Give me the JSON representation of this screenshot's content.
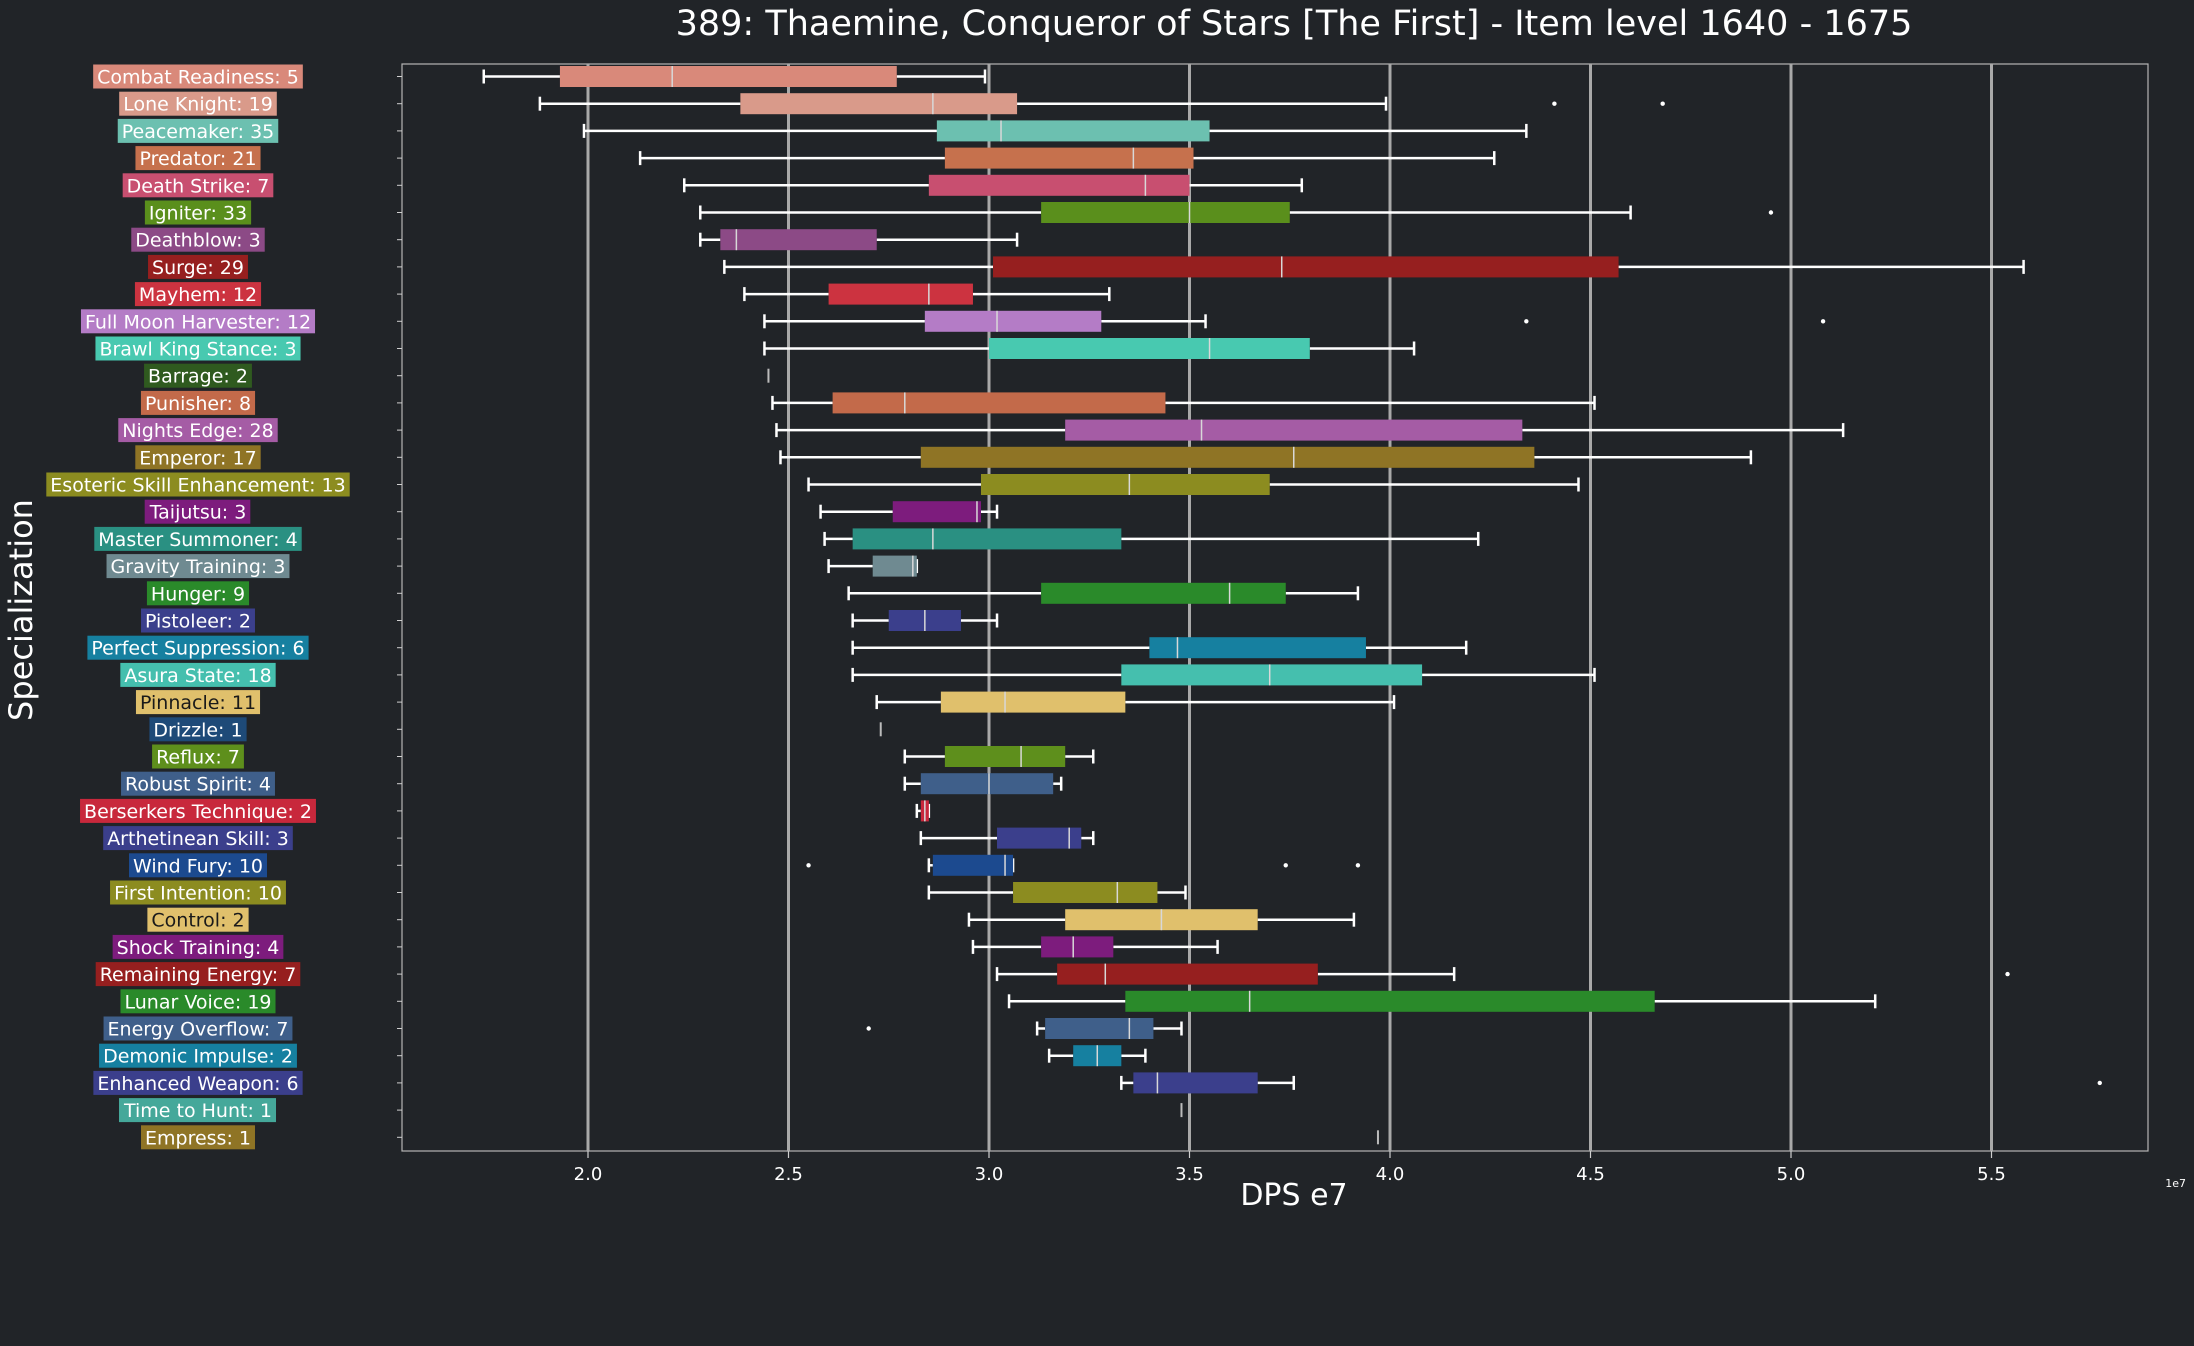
{
  "chart_data": {
    "type": "boxplot",
    "title": "389: Thaemine, Conqueror of Stars [The First] - Item level 1640 - 1675",
    "xlabel": "DPS e7",
    "ylabel": "Specialization",
    "x_offset_label": "1e7",
    "xlim": [
      1.53,
      5.97
    ],
    "xticks": [
      2.0,
      2.5,
      3.0,
      3.5,
      4.0,
      4.5,
      5.0,
      5.5
    ],
    "xtick_labels": [
      "2.0",
      "2.5",
      "3.0",
      "3.5",
      "4.0",
      "4.5",
      "5.0",
      "5.5"
    ],
    "grid": "vertical at ticks",
    "background": "#212428",
    "series": [
      {
        "label": "Combat Readiness: 5",
        "color": "#d9897a",
        "whisker_low": 1.74,
        "q1": 1.93,
        "median": 2.21,
        "q3": 2.77,
        "whisker_high": 2.99,
        "outliers": []
      },
      {
        "label": "Lone Knight: 19",
        "color": "#d99a8a",
        "whisker_low": 1.88,
        "q1": 2.38,
        "median": 2.86,
        "q3": 3.07,
        "whisker_high": 3.99,
        "outliers": [
          4.41,
          4.68
        ]
      },
      {
        "label": "Peacemaker: 35",
        "color": "#6cc0b0",
        "whisker_low": 1.99,
        "q1": 2.87,
        "median": 3.03,
        "q3": 3.55,
        "whisker_high": 4.34,
        "outliers": []
      },
      {
        "label": "Predator: 21",
        "color": "#c6714d",
        "whisker_low": 2.13,
        "q1": 2.89,
        "median": 3.36,
        "q3": 3.51,
        "whisker_high": 4.26,
        "outliers": []
      },
      {
        "label": "Death Strike: 7",
        "color": "#c84f70",
        "whisker_low": 2.24,
        "q1": 2.85,
        "median": 3.39,
        "q3": 3.5,
        "whisker_high": 3.78,
        "outliers": []
      },
      {
        "label": "Igniter: 33",
        "color": "#5a8f1c",
        "whisker_low": 2.28,
        "q1": 3.13,
        "median": 3.5,
        "q3": 3.75,
        "whisker_high": 4.6,
        "outliers": [
          4.95
        ]
      },
      {
        "label": "Deathblow: 3",
        "color": "#8c4a86",
        "whisker_low": 2.28,
        "q1": 2.33,
        "median": 2.37,
        "q3": 2.72,
        "whisker_high": 3.07,
        "outliers": []
      },
      {
        "label": "Surge: 29",
        "color": "#961f1f",
        "whisker_low": 2.34,
        "q1": 3.01,
        "median": 3.73,
        "q3": 4.57,
        "whisker_high": 5.58,
        "outliers": []
      },
      {
        "label": "Mayhem: 12",
        "color": "#cc3340",
        "whisker_low": 2.39,
        "q1": 2.6,
        "median": 2.85,
        "q3": 2.96,
        "whisker_high": 3.3,
        "outliers": []
      },
      {
        "label": "Full Moon Harvester: 12",
        "color": "#b47cc6",
        "whisker_low": 2.44,
        "q1": 2.84,
        "median": 3.02,
        "q3": 3.28,
        "whisker_high": 3.54,
        "outliers": [
          4.34,
          5.08
        ]
      },
      {
        "label": "Brawl King Stance: 3",
        "color": "#48c9b0",
        "whisker_low": 2.44,
        "q1": 3.0,
        "median": 3.55,
        "q3": 3.8,
        "whisker_high": 4.06,
        "outliers": []
      },
      {
        "label": "Barrage: 2",
        "color": "#2f5a1f",
        "whisker_low": 2.45,
        "q1": 2.45,
        "median": 2.45,
        "q3": 2.45,
        "whisker_high": 2.45,
        "outliers": []
      },
      {
        "label": "Punisher: 8",
        "color": "#c36a4a",
        "whisker_low": 2.46,
        "q1": 2.61,
        "median": 2.79,
        "q3": 3.44,
        "whisker_high": 4.51,
        "outliers": []
      },
      {
        "label": "Nights Edge: 28",
        "color": "#a55ca5",
        "whisker_low": 2.47,
        "q1": 3.19,
        "median": 3.53,
        "q3": 4.33,
        "whisker_high": 5.13,
        "outliers": []
      },
      {
        "label": "Emperor: 17",
        "color": "#8f7425",
        "whisker_low": 2.48,
        "q1": 2.83,
        "median": 3.76,
        "q3": 4.36,
        "whisker_high": 4.9,
        "outliers": []
      },
      {
        "label": "Esoteric Skill Enhancement: 13",
        "color": "#8c8c20",
        "whisker_low": 2.55,
        "q1": 2.98,
        "median": 3.35,
        "q3": 3.7,
        "whisker_high": 4.47,
        "outliers": []
      },
      {
        "label": "Taijutsu: 3",
        "color": "#7d1c7d",
        "whisker_low": 2.58,
        "q1": 2.76,
        "median": 2.97,
        "q3": 2.98,
        "whisker_high": 3.02,
        "outliers": []
      },
      {
        "label": "Master Summoner: 4",
        "color": "#2a9082",
        "whisker_low": 2.59,
        "q1": 2.66,
        "median": 2.86,
        "q3": 3.33,
        "whisker_high": 4.22,
        "outliers": []
      },
      {
        "label": "Gravity Training: 3",
        "color": "#6f8a91",
        "whisker_low": 2.6,
        "q1": 2.71,
        "median": 2.81,
        "q3": 2.82,
        "whisker_high": 2.82,
        "outliers": []
      },
      {
        "label": "Hunger: 9",
        "color": "#2a8a2a",
        "whisker_low": 2.65,
        "q1": 3.13,
        "median": 3.6,
        "q3": 3.74,
        "whisker_high": 3.92,
        "outliers": []
      },
      {
        "label": "Pistoleer: 2",
        "color": "#3b3f8c",
        "whisker_low": 2.66,
        "q1": 2.75,
        "median": 2.84,
        "q3": 2.93,
        "whisker_high": 3.02,
        "outliers": []
      },
      {
        "label": "Perfect Suppression: 6",
        "color": "#1680a0",
        "whisker_low": 2.66,
        "q1": 3.4,
        "median": 3.47,
        "q3": 3.94,
        "whisker_high": 4.19,
        "outliers": []
      },
      {
        "label": "Asura State: 18",
        "color": "#45bfae",
        "whisker_low": 2.66,
        "q1": 3.33,
        "median": 3.7,
        "q3": 4.08,
        "whisker_high": 4.51,
        "outliers": []
      },
      {
        "label": "Pinnacle: 11",
        "color": "#e0c06c",
        "whisker_low": 2.72,
        "q1": 2.88,
        "median": 3.04,
        "q3": 3.34,
        "whisker_high": 4.01,
        "outliers": []
      },
      {
        "label": "Drizzle: 1",
        "color": "#1e4a78",
        "whisker_low": 2.73,
        "q1": 2.73,
        "median": 2.73,
        "q3": 2.73,
        "whisker_high": 2.73,
        "outliers": []
      },
      {
        "label": "Reflux: 7",
        "color": "#5e8f1c",
        "whisker_low": 2.79,
        "q1": 2.89,
        "median": 3.08,
        "q3": 3.19,
        "whisker_high": 3.26,
        "outliers": []
      },
      {
        "label": "Robust Spirit: 4",
        "color": "#3f5f8a",
        "whisker_low": 2.79,
        "q1": 2.83,
        "median": 3.0,
        "q3": 3.16,
        "whisker_high": 3.18,
        "outliers": []
      },
      {
        "label": "Berserkers Technique: 2",
        "color": "#c8283c",
        "whisker_low": 2.82,
        "q1": 2.83,
        "median": 2.84,
        "q3": 2.85,
        "whisker_high": 2.85,
        "outliers": []
      },
      {
        "label": "Arthetinean Skill: 3",
        "color": "#3b3f8c",
        "whisker_low": 2.83,
        "q1": 3.02,
        "median": 3.2,
        "q3": 3.23,
        "whisker_high": 3.26,
        "outliers": []
      },
      {
        "label": "Wind Fury: 10",
        "color": "#1c4a8f",
        "whisker_low": 2.85,
        "q1": 2.86,
        "median": 3.04,
        "q3": 3.06,
        "whisker_high": 3.06,
        "outliers": [
          2.55,
          3.74,
          3.92
        ]
      },
      {
        "label": "First Intention: 10",
        "color": "#8c8c20",
        "whisker_low": 2.85,
        "q1": 3.06,
        "median": 3.32,
        "q3": 3.42,
        "whisker_high": 3.49,
        "outliers": []
      },
      {
        "label": "Control: 2",
        "color": "#e0c06c",
        "whisker_low": 2.95,
        "q1": 3.19,
        "median": 3.43,
        "q3": 3.67,
        "whisker_high": 3.91,
        "outliers": []
      },
      {
        "label": "Shock Training: 4",
        "color": "#7d1c7d",
        "whisker_low": 2.96,
        "q1": 3.13,
        "median": 3.21,
        "q3": 3.31,
        "whisker_high": 3.57,
        "outliers": []
      },
      {
        "label": "Remaining Energy: 7",
        "color": "#961f1f",
        "whisker_low": 3.02,
        "q1": 3.17,
        "median": 3.29,
        "q3": 3.82,
        "whisker_high": 4.16,
        "outliers": [
          5.54
        ]
      },
      {
        "label": "Lunar Voice: 19",
        "color": "#2a8a2a",
        "whisker_low": 3.05,
        "q1": 3.34,
        "median": 3.65,
        "q3": 4.66,
        "whisker_high": 5.21,
        "outliers": []
      },
      {
        "label": "Energy Overflow: 7",
        "color": "#3f5f8a",
        "whisker_low": 3.12,
        "q1": 3.14,
        "median": 3.35,
        "q3": 3.41,
        "whisker_high": 3.48,
        "outliers": [
          2.7
        ]
      },
      {
        "label": "Demonic Impulse: 2",
        "color": "#1680a0",
        "whisker_low": 3.15,
        "q1": 3.21,
        "median": 3.27,
        "q3": 3.33,
        "whisker_high": 3.39,
        "outliers": []
      },
      {
        "label": "Enhanced Weapon: 6",
        "color": "#3b3f8c",
        "whisker_low": 3.33,
        "q1": 3.36,
        "median": 3.42,
        "q3": 3.67,
        "whisker_high": 3.76,
        "outliers": [
          5.77
        ]
      },
      {
        "label": "Time to Hunt: 1",
        "color": "#45a89a",
        "whisker_low": 3.48,
        "q1": 3.48,
        "median": 3.48,
        "q3": 3.48,
        "whisker_high": 3.48,
        "outliers": []
      },
      {
        "label": "Empress: 1",
        "color": "#8f7425",
        "whisker_low": 3.97,
        "q1": 3.97,
        "median": 3.97,
        "q3": 3.97,
        "whisker_high": 3.97,
        "outliers": []
      }
    ]
  }
}
